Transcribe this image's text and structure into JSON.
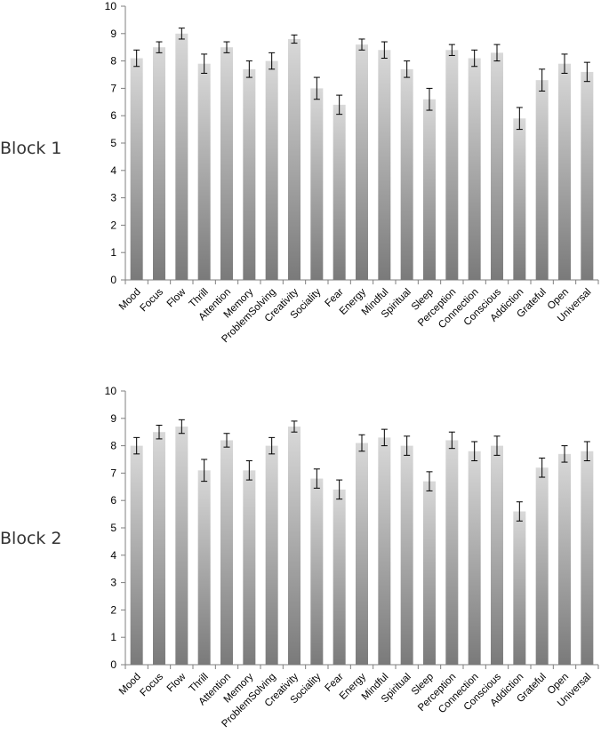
{
  "chart_data": [
    {
      "type": "bar",
      "panel_label": "Block 1",
      "categories": [
        "Mood",
        "Focus",
        "Flow",
        "Thrill",
        "Attention",
        "Memory",
        "ProblemSolving",
        "Creativity",
        "Sociality",
        "Fear",
        "Energy",
        "Mindful",
        "Spiritual",
        "Sleep",
        "Perception",
        "Connection",
        "Conscious",
        "Addiction",
        "Grateful",
        "Open",
        "Universal"
      ],
      "values": [
        8.1,
        8.5,
        9.0,
        7.9,
        8.5,
        7.7,
        8.0,
        8.8,
        7.0,
        6.4,
        8.6,
        8.4,
        7.7,
        6.6,
        8.4,
        8.1,
        8.3,
        5.9,
        7.3,
        7.9,
        7.6
      ],
      "errors": [
        0.3,
        0.2,
        0.2,
        0.35,
        0.2,
        0.3,
        0.3,
        0.15,
        0.4,
        0.35,
        0.2,
        0.3,
        0.3,
        0.4,
        0.2,
        0.3,
        0.3,
        0.4,
        0.4,
        0.35,
        0.35
      ],
      "ylim": [
        0,
        10
      ],
      "yticks": [
        "0",
        "1",
        "2",
        "3",
        "4",
        "5",
        "6",
        "7",
        "8",
        "9",
        "10"
      ],
      "title": "",
      "xlabel": "",
      "ylabel": "",
      "grid": false
    },
    {
      "type": "bar",
      "panel_label": "Block 2",
      "categories": [
        "Mood",
        "Focus",
        "Flow",
        "Thrill",
        "Attention",
        "Memory",
        "ProblemSolving",
        "Creativity",
        "Sociality",
        "Fear",
        "Energy",
        "Mindful",
        "Spiritual",
        "Sleep",
        "Perception",
        "Connection",
        "Conscious",
        "Addiction",
        "Grateful",
        "Open",
        "Universal"
      ],
      "values": [
        8.0,
        8.5,
        8.7,
        7.1,
        8.2,
        7.1,
        8.0,
        8.7,
        6.8,
        6.4,
        8.1,
        8.3,
        8.0,
        6.7,
        8.2,
        7.8,
        8.0,
        5.6,
        7.2,
        7.7,
        7.8
      ],
      "errors": [
        0.3,
        0.25,
        0.25,
        0.4,
        0.25,
        0.35,
        0.3,
        0.2,
        0.35,
        0.35,
        0.3,
        0.3,
        0.35,
        0.35,
        0.3,
        0.35,
        0.35,
        0.35,
        0.35,
        0.3,
        0.35
      ],
      "ylim": [
        0,
        10
      ],
      "yticks": [
        "0",
        "1",
        "2",
        "3",
        "4",
        "5",
        "6",
        "7",
        "8",
        "9",
        "10"
      ],
      "title": "",
      "xlabel": "",
      "ylabel": "",
      "grid": false
    }
  ]
}
